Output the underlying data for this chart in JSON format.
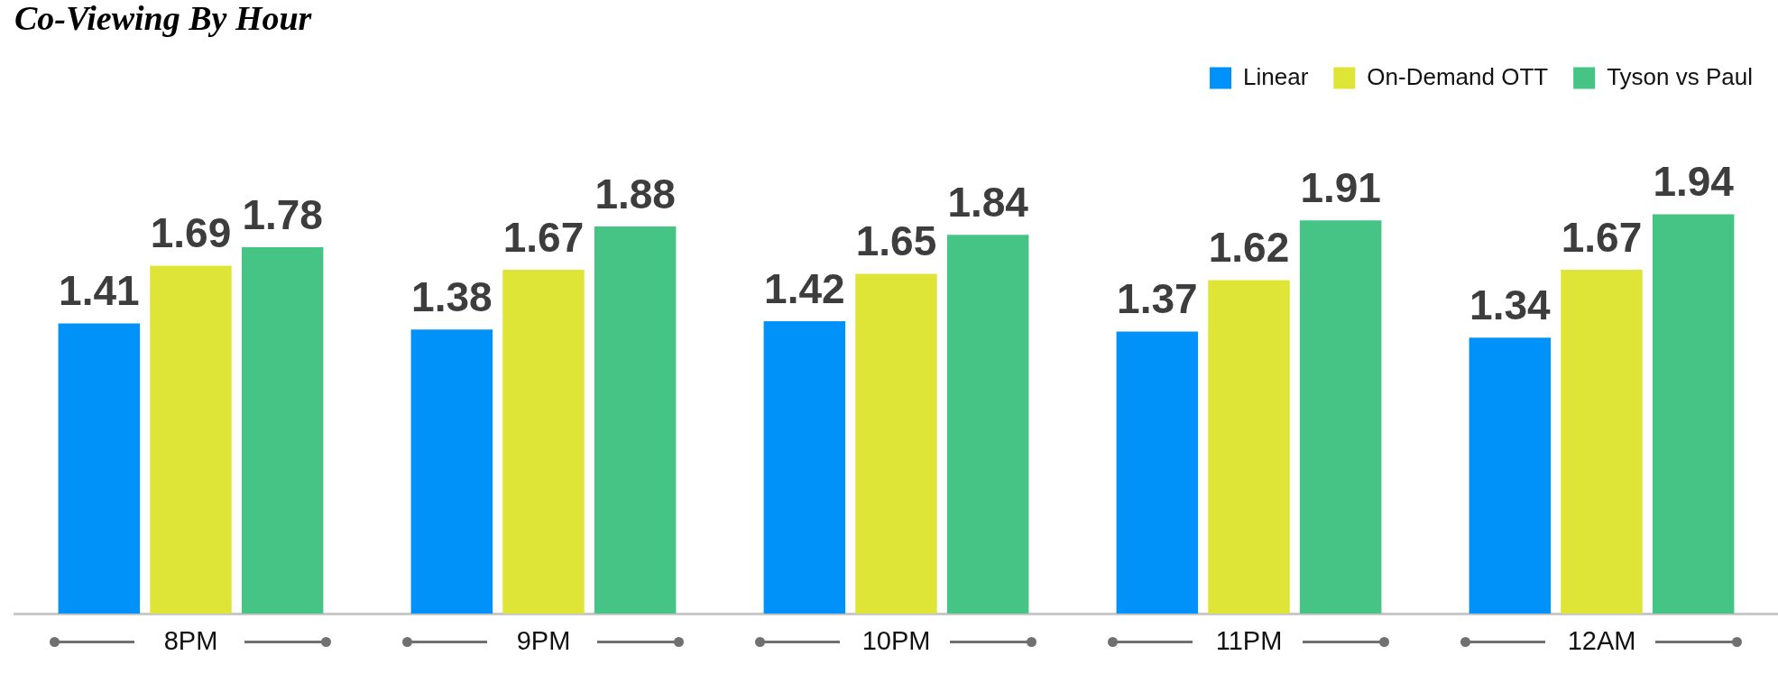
{
  "chart_data": {
    "type": "bar",
    "title": "Co-Viewing By Hour",
    "categories": [
      "8PM",
      "9PM",
      "10PM",
      "11PM",
      "12AM"
    ],
    "series": [
      {
        "name": "Linear",
        "color": "#0091f9",
        "values": [
          1.41,
          1.38,
          1.42,
          1.37,
          1.34
        ]
      },
      {
        "name": "On-Demand OTT",
        "color": "#dfe536",
        "values": [
          1.69,
          1.67,
          1.65,
          1.62,
          1.67
        ]
      },
      {
        "name": "Tyson vs Paul",
        "color": "#45c486",
        "values": [
          1.78,
          1.88,
          1.84,
          1.91,
          1.94
        ]
      }
    ],
    "tick_labels": "x",
    "data_labels": true,
    "legend": "top right",
    "grid": false
  }
}
